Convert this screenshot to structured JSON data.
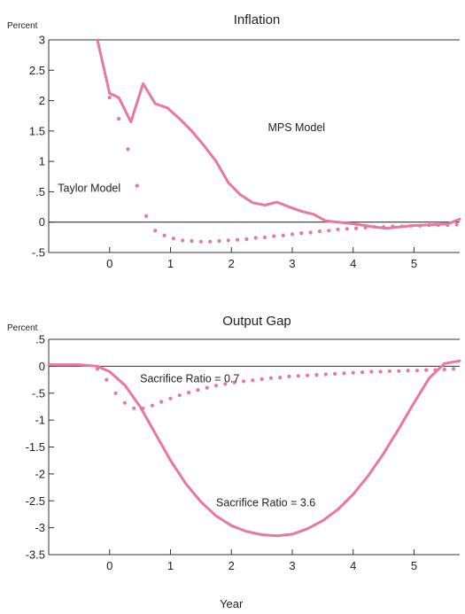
{
  "chart_data": [
    {
      "type": "line",
      "title": "Inflation",
      "ylabel": "Percent",
      "xlabel": "",
      "xlim": [
        -1.0,
        5.75
      ],
      "ylim": [
        -0.5,
        3
      ],
      "y_ticks": [
        3,
        2.5,
        2,
        1.5,
        1,
        0.5,
        0,
        -0.5
      ],
      "y_tick_labels": [
        "3",
        "2.5",
        "2",
        "1.5",
        "1",
        ".5",
        "0",
        "-.5"
      ],
      "x_ticks": [
        0,
        1,
        2,
        3,
        4,
        5
      ],
      "x_tick_labels": [
        "0",
        "1",
        "2",
        "3",
        "4",
        "5"
      ],
      "zero_line": true,
      "line_color": "#e8789e",
      "series": [
        {
          "name": "MPS Model",
          "style": "solid",
          "x": [
            -0.2,
            0,
            0.15,
            0.35,
            0.55,
            0.75,
            0.95,
            1.15,
            1.35,
            1.55,
            1.75,
            1.95,
            2.15,
            2.35,
            2.55,
            2.75,
            2.95,
            3.15,
            3.35,
            3.55,
            3.75,
            3.95,
            4.15,
            4.35,
            4.55,
            4.75,
            4.95,
            5.15,
            5.35,
            5.55,
            5.75
          ],
          "y": [
            3.0,
            2.12,
            2.05,
            1.65,
            2.28,
            1.95,
            1.88,
            1.7,
            1.5,
            1.26,
            1.0,
            0.65,
            0.45,
            0.32,
            0.28,
            0.33,
            0.25,
            0.18,
            0.13,
            0.02,
            0.0,
            -0.02,
            -0.05,
            -0.08,
            -0.1,
            -0.08,
            -0.06,
            -0.05,
            -0.04,
            -0.03,
            0.05
          ]
        },
        {
          "name": "Taylor Model",
          "style": "dotted",
          "x": [
            0,
            0.15,
            0.3,
            0.45,
            0.6,
            0.75,
            0.9,
            1.05,
            1.2,
            1.35,
            1.5,
            1.65,
            1.8,
            1.95,
            2.1,
            2.25,
            2.4,
            2.55,
            2.7,
            2.85,
            3.0,
            3.15,
            3.3,
            3.45,
            3.6,
            3.75,
            3.9,
            4.05,
            4.2,
            4.35,
            4.5,
            4.65,
            4.8,
            4.95,
            5.1,
            5.25,
            5.4,
            5.55,
            5.7
          ],
          "y": [
            2.05,
            1.7,
            1.2,
            0.6,
            0.1,
            -0.14,
            -0.22,
            -0.27,
            -0.3,
            -0.31,
            -0.32,
            -0.32,
            -0.31,
            -0.3,
            -0.29,
            -0.28,
            -0.26,
            -0.25,
            -0.23,
            -0.22,
            -0.2,
            -0.18,
            -0.17,
            -0.15,
            -0.14,
            -0.12,
            -0.11,
            -0.1,
            -0.09,
            -0.08,
            -0.08,
            -0.07,
            -0.07,
            -0.06,
            -0.06,
            -0.05,
            -0.05,
            -0.05,
            -0.04
          ]
        }
      ],
      "annotations": [
        {
          "text": "MPS Model",
          "x": 2.6,
          "y": 1.5
        },
        {
          "text": "Taylor Model",
          "x": -0.85,
          "y": 0.5
        }
      ]
    },
    {
      "type": "line",
      "title": "Output Gap",
      "ylabel": "Percent",
      "xlabel": "Year",
      "xlim": [
        -1.0,
        5.75
      ],
      "ylim": [
        -3.5,
        0.5
      ],
      "y_ticks": [
        0.5,
        0,
        -0.5,
        -1,
        -1.5,
        -2,
        -2.5,
        -3,
        -3.5
      ],
      "y_tick_labels": [
        ".5",
        "0",
        "-.5",
        "-1",
        "-1.5",
        "-2",
        "-2.5",
        "-3",
        "-3.5"
      ],
      "x_ticks": [
        0,
        1,
        2,
        3,
        4,
        5
      ],
      "x_tick_labels": [
        "0",
        "1",
        "2",
        "3",
        "4",
        "5"
      ],
      "zero_line": true,
      "line_color": "#e8789e",
      "series": [
        {
          "name": "Sacrifice Ratio = 3.6",
          "style": "solid",
          "x": [
            -1.0,
            -0.5,
            -0.2,
            0,
            0.25,
            0.5,
            0.75,
            1.0,
            1.25,
            1.5,
            1.75,
            2.0,
            2.25,
            2.5,
            2.75,
            3.0,
            3.25,
            3.5,
            3.75,
            4.0,
            4.25,
            4.5,
            4.75,
            5.0,
            5.25,
            5.5,
            5.75
          ],
          "y": [
            0.03,
            0.03,
            0.0,
            -0.1,
            -0.35,
            -0.75,
            -1.25,
            -1.75,
            -2.18,
            -2.52,
            -2.78,
            -2.96,
            -3.07,
            -3.13,
            -3.15,
            -3.12,
            -3.02,
            -2.87,
            -2.66,
            -2.38,
            -2.03,
            -1.62,
            -1.16,
            -0.68,
            -0.22,
            0.05,
            0.1
          ]
        },
        {
          "name": "Sacrifice Ratio = 0.7",
          "style": "dotted",
          "x": [
            -0.2,
            -0.05,
            0.1,
            0.25,
            0.4,
            0.55,
            0.7,
            0.85,
            1.0,
            1.15,
            1.3,
            1.45,
            1.6,
            1.75,
            1.9,
            2.05,
            2.2,
            2.35,
            2.5,
            2.65,
            2.8,
            2.95,
            3.1,
            3.25,
            3.4,
            3.55,
            3.7,
            3.85,
            4.0,
            4.15,
            4.3,
            4.45,
            4.6,
            4.75,
            4.9,
            5.05,
            5.2,
            5.35,
            5.5,
            5.65
          ],
          "y": [
            -0.05,
            -0.25,
            -0.5,
            -0.68,
            -0.78,
            -0.78,
            -0.73,
            -0.66,
            -0.6,
            -0.54,
            -0.49,
            -0.44,
            -0.4,
            -0.36,
            -0.33,
            -0.3,
            -0.28,
            -0.26,
            -0.24,
            -0.22,
            -0.21,
            -0.19,
            -0.18,
            -0.17,
            -0.16,
            -0.15,
            -0.14,
            -0.13,
            -0.12,
            -0.11,
            -0.1,
            -0.1,
            -0.09,
            -0.09,
            -0.08,
            -0.08,
            -0.07,
            -0.07,
            -0.06,
            -0.05
          ]
        }
      ],
      "annotations": [
        {
          "text": "Sacrifice Ratio = 0.7",
          "x": 0.5,
          "y": -0.3
        },
        {
          "text": "Sacrifice Ratio = 3.6",
          "x": 1.75,
          "y": -2.6
        }
      ]
    }
  ]
}
